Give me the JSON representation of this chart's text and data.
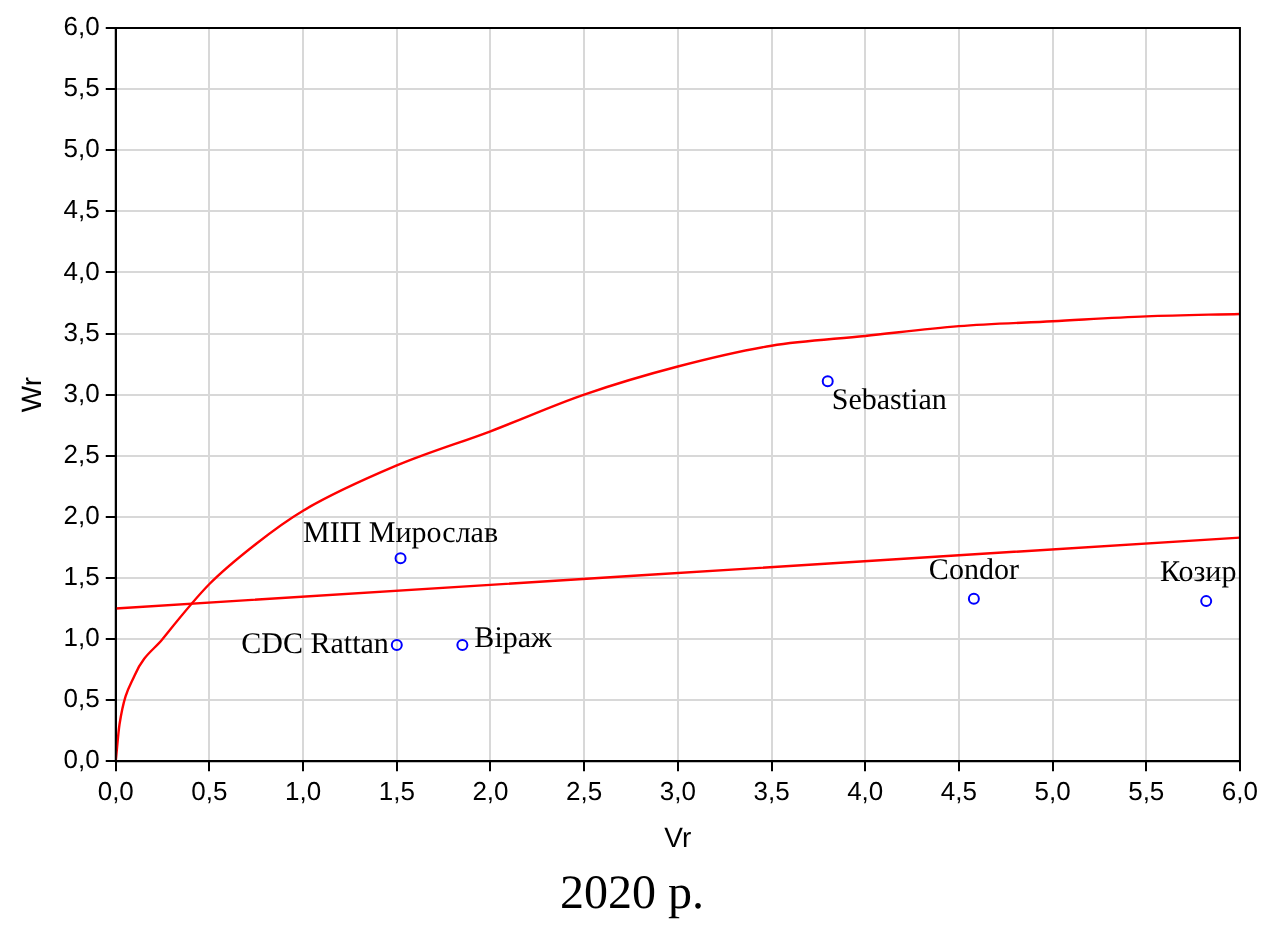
{
  "chart_data": {
    "type": "scatter",
    "xlabel": "Vr",
    "ylabel": "Wr",
    "xlim": [
      0,
      6
    ],
    "ylim": [
      0,
      6
    ],
    "xticks": [
      {
        "value": 0,
        "label": "0,0"
      },
      {
        "value": 0.5,
        "label": "0,5"
      },
      {
        "value": 1,
        "label": "1,0"
      },
      {
        "value": 1.5,
        "label": "1,5"
      },
      {
        "value": 2,
        "label": "2,0"
      },
      {
        "value": 2.5,
        "label": "2,5"
      },
      {
        "value": 3,
        "label": "3,0"
      },
      {
        "value": 3.5,
        "label": "3,5"
      },
      {
        "value": 4,
        "label": "4,0"
      },
      {
        "value": 4.5,
        "label": "4,5"
      },
      {
        "value": 5,
        "label": "5,0"
      },
      {
        "value": 5.5,
        "label": "5,5"
      },
      {
        "value": 6,
        "label": "6,0"
      }
    ],
    "yticks": [
      {
        "value": 0,
        "label": "0,0"
      },
      {
        "value": 0.5,
        "label": "0,5"
      },
      {
        "value": 1,
        "label": "1,0"
      },
      {
        "value": 1.5,
        "label": "1,5"
      },
      {
        "value": 2,
        "label": "2,0"
      },
      {
        "value": 2.5,
        "label": "2,5"
      },
      {
        "value": 3,
        "label": "3,0"
      },
      {
        "value": 3.5,
        "label": "3,5"
      },
      {
        "value": 4,
        "label": "4,0"
      },
      {
        "value": 4.5,
        "label": "4,5"
      },
      {
        "value": 5,
        "label": "5,0"
      },
      {
        "value": 5.5,
        "label": "5,5"
      },
      {
        "value": 6,
        "label": "6,0"
      }
    ],
    "grid": true,
    "legend": false,
    "series": [
      {
        "type": "scatter",
        "color": "#0000ff",
        "marker": "circle",
        "x": [
          3.8,
          1.52,
          1.5,
          1.85,
          4.58,
          5.82
        ],
        "values": [
          3.11,
          1.66,
          0.95,
          0.95,
          1.33,
          1.31
        ]
      },
      {
        "type": "line",
        "color": "#ff0000",
        "marker": "none",
        "x": [
          0,
          6
        ],
        "values": [
          1.25,
          1.83
        ]
      },
      {
        "type": "line",
        "color": "#ff0000",
        "marker": "none",
        "x": [
          0,
          0.02,
          0.1,
          0.25,
          0.5,
          0.75,
          1,
          1.5,
          2,
          2.5,
          3,
          3.5,
          4,
          4.5,
          5,
          5.5,
          6
        ],
        "values": [
          0,
          0.3,
          0.7,
          1.0,
          1.45,
          1.78,
          2.05,
          2.42,
          2.7,
          3.0,
          3.23,
          3.4,
          3.48,
          3.56,
          3.6,
          3.64,
          3.66
        ]
      }
    ],
    "annotations": [
      {
        "text": "Sebastian",
        "x": 3.8,
        "y": 3.11
      },
      {
        "text": "МІП Мирослав",
        "x": 1.52,
        "y": 1.66
      },
      {
        "text": "CDC Rattan",
        "x": 1.5,
        "y": 0.95
      },
      {
        "text": "Віраж",
        "x": 1.85,
        "y": 0.95
      },
      {
        "text": "Condor",
        "x": 4.58,
        "y": 1.33
      },
      {
        "text": "Козир",
        "x": 5.82,
        "y": 1.31
      },
      "2020 р."
    ]
  }
}
